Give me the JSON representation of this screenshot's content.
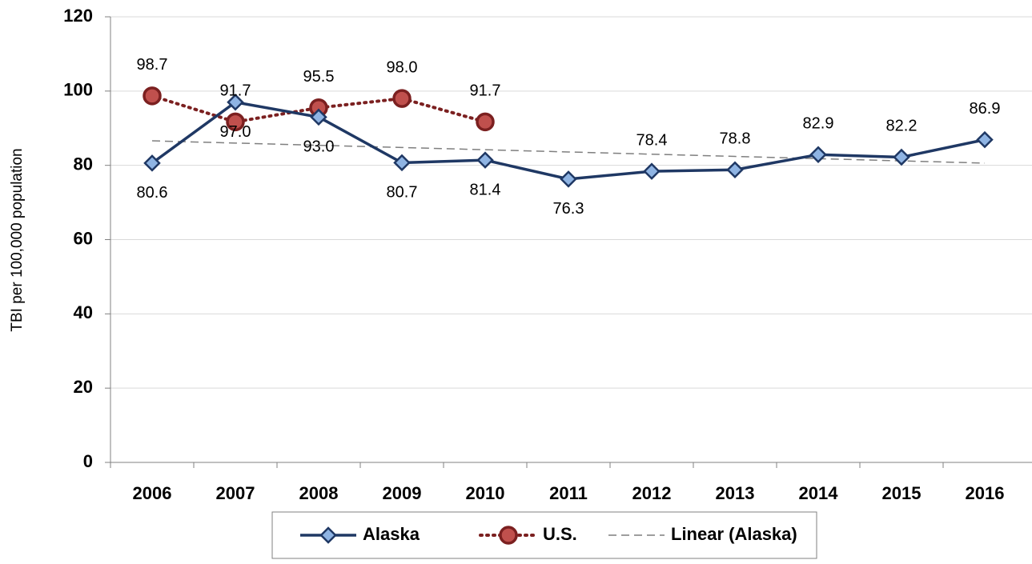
{
  "chart_data": {
    "type": "line",
    "y_label": "TBI per 100,000 population",
    "categories": [
      "2006",
      "2007",
      "2008",
      "2009",
      "2010",
      "2011",
      "2012",
      "2013",
      "2014",
      "2015",
      "2016"
    ],
    "series": [
      {
        "name": "Alaska",
        "color": "#1f3864",
        "marker": "diamond",
        "marker_color": "#8fb4e3",
        "values": [
          80.6,
          97.0,
          93.0,
          80.7,
          81.4,
          76.3,
          78.4,
          78.8,
          82.9,
          82.2,
          86.9
        ]
      },
      {
        "name": "U.S.",
        "color": "#7b2020",
        "marker": "circle",
        "marker_color": "#c0504d",
        "dash": "dotted",
        "values": [
          98.7,
          91.7,
          95.5,
          98.0,
          91.7,
          null,
          null,
          null,
          null,
          null,
          null
        ],
        "value_labels": [
          "98.7",
          "91.7",
          "95.5",
          "98.0",
          "91.7",
          null,
          null,
          null,
          null,
          null,
          null
        ]
      },
      {
        "name": "Linear (Alaska)",
        "color": "#7f7f7f",
        "dash": "dashed",
        "values": [
          86.6,
          86.0,
          85.4,
          84.8,
          84.2,
          83.6,
          83.0,
          82.4,
          81.8,
          81.2,
          80.6
        ]
      }
    ],
    "data_labels": [
      0,
      1
    ],
    "ylim": [
      0,
      120
    ],
    "yticks": [
      0,
      20,
      40,
      60,
      80,
      100,
      120
    ],
    "grid": true,
    "legend": "bottom"
  }
}
